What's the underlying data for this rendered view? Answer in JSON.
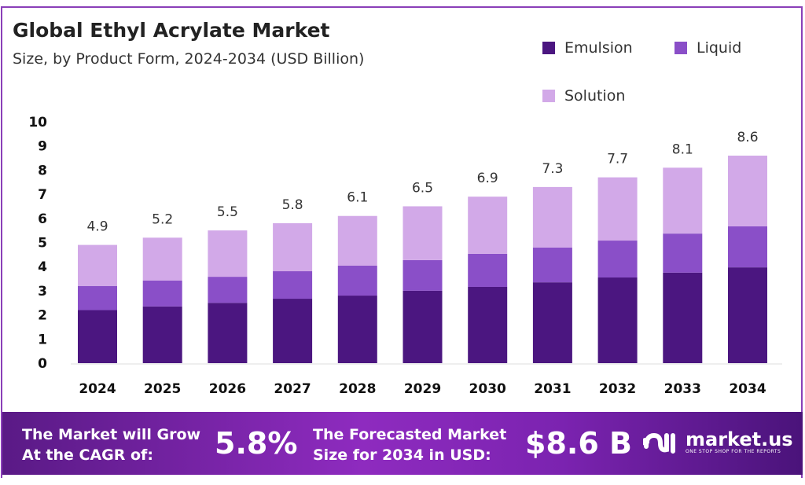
{
  "header": {
    "title": "Global Ethyl Acrylate Market",
    "subtitle": "Size, by Product Form, 2024-2034 (USD Billion)"
  },
  "chart_data": {
    "type": "bar",
    "stacked": true,
    "categories": [
      "2024",
      "2025",
      "2026",
      "2027",
      "2028",
      "2029",
      "2030",
      "2031",
      "2032",
      "2033",
      "2034"
    ],
    "series": [
      {
        "name": "Emulsion",
        "color": "#4b1680",
        "values": [
          2.2,
          2.35,
          2.5,
          2.67,
          2.8,
          3.0,
          3.16,
          3.35,
          3.55,
          3.75,
          3.97
        ]
      },
      {
        "name": "Liquid",
        "color": "#8a4fc8",
        "values": [
          1.0,
          1.07,
          1.08,
          1.14,
          1.24,
          1.27,
          1.37,
          1.44,
          1.53,
          1.62,
          1.7
        ]
      },
      {
        "name": "Solution",
        "color": "#d2a9e8",
        "values": [
          1.7,
          1.78,
          1.92,
          1.99,
          2.06,
          2.23,
          2.37,
          2.51,
          2.62,
          2.73,
          2.93
        ]
      }
    ],
    "totals": [
      "4.9",
      "5.2",
      "5.5",
      "5.8",
      "6.1",
      "6.5",
      "6.9",
      "7.3",
      "7.7",
      "8.1",
      "8.6"
    ],
    "ylim": [
      0,
      10
    ],
    "yticks": [
      "0",
      "1",
      "2",
      "3",
      "4",
      "5",
      "6",
      "7",
      "8",
      "9",
      "10"
    ],
    "legend_position": "top-right",
    "grid": false
  },
  "footer": {
    "cagr_label_1": "The Market will Grow",
    "cagr_label_2": "At the CAGR of:",
    "cagr_value": "5.8%",
    "forecast_label_1": "The Forecasted Market",
    "forecast_label_2": "Size for 2034 in USD:",
    "forecast_value": "$8.6 B",
    "logo_text": "market.us",
    "logo_tagline": "ONE STOP SHOP FOR THE REPORTS"
  }
}
